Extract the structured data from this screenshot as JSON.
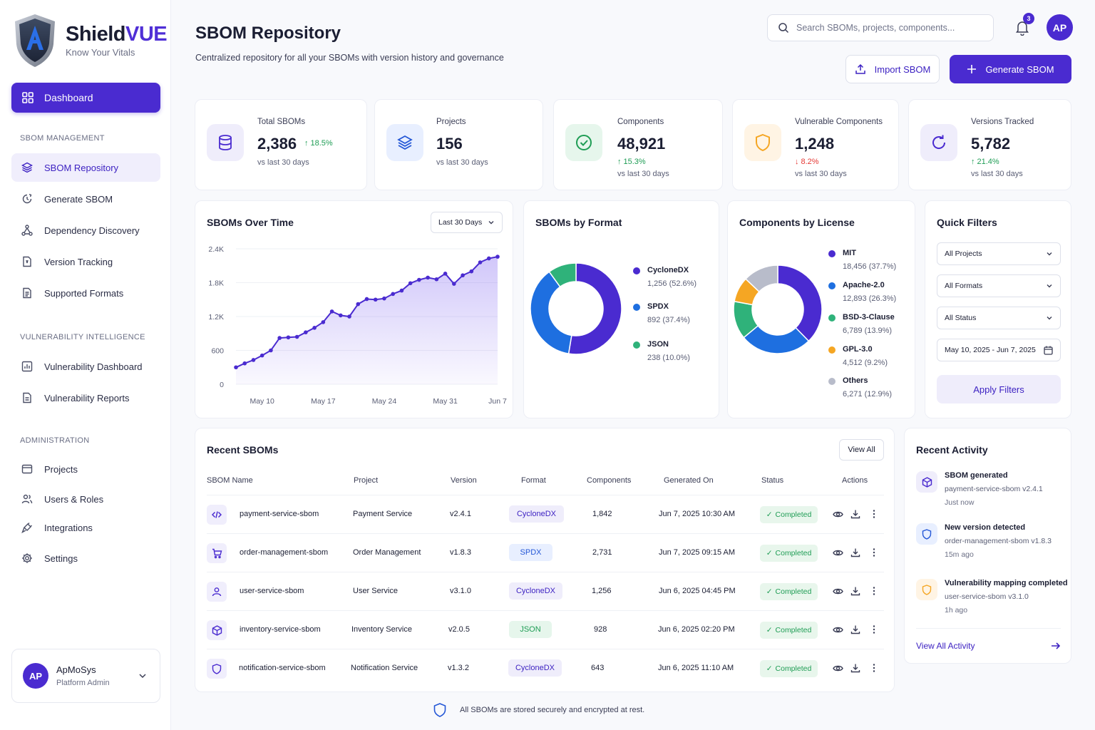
{
  "brand": {
    "name_part1": "Shield",
    "name_part2": "VUE",
    "tagline": "Know Your Vitals"
  },
  "sidebar": {
    "dashboard": "Dashboard",
    "sections": [
      {
        "label": "SBOM MANAGEMENT",
        "items": [
          {
            "label": "SBOM Repository",
            "icon": "layers-icon",
            "active": true
          },
          {
            "label": "Generate SBOM",
            "icon": "generate-icon"
          },
          {
            "label": "Dependency Discovery",
            "icon": "hierarchy-icon"
          },
          {
            "label": "Version Tracking",
            "icon": "version-icon"
          },
          {
            "label": "Supported Formats",
            "icon": "file-icon"
          }
        ]
      },
      {
        "label": "VULNERABILITY INTELLIGENCE",
        "items": [
          {
            "label": "Vulnerability Dashboard",
            "icon": "bar-chart-icon"
          },
          {
            "label": "Vulnerability Reports",
            "icon": "report-icon"
          }
        ]
      },
      {
        "label": "ADMINISTRATION",
        "items": [
          {
            "label": "Projects",
            "icon": "folder-icon"
          },
          {
            "label": "Users & Roles",
            "icon": "users-icon"
          },
          {
            "label": "Integrations",
            "icon": "plug-icon"
          },
          {
            "label": "Settings",
            "icon": "gear-icon"
          }
        ]
      }
    ],
    "user": {
      "initials": "AP",
      "name": "ApMoSys",
      "role": "Platform Admin"
    }
  },
  "header": {
    "title": "SBOM Repository",
    "subtitle": "Centralized repository for all your SBOMs with version history and governance",
    "search_placeholder": "Search SBOMs, projects, components...",
    "notification_count": "3",
    "avatar": "AP",
    "import_label": "Import SBOM",
    "generate_label": "Generate SBOM"
  },
  "stats": [
    {
      "label": "Total SBOMs",
      "value": "2,386",
      "delta": "18.5%",
      "trend": "up",
      "note": "vs last 30 days"
    },
    {
      "label": "Projects",
      "value": "156",
      "delta": "",
      "trend": "",
      "note": "vs last 30 days"
    },
    {
      "label": "Components",
      "value": "48,921",
      "delta": "15.3%",
      "trend": "up",
      "note": "vs last 30 days"
    },
    {
      "label": "Vulnerable Components",
      "value": "1,248",
      "delta": "8.2%",
      "trend": "down",
      "note": "vs last 30 days"
    },
    {
      "label": "Versions Tracked",
      "value": "5,782",
      "delta": "21.4%",
      "trend": "up",
      "note": "vs last 30 days"
    }
  ],
  "over_time": {
    "title": "SBOMs Over Time",
    "range": "Last 30 Days"
  },
  "by_format": {
    "title": "SBOMs by Format"
  },
  "by_license": {
    "title": "Components by License"
  },
  "chart_data": [
    {
      "type": "area",
      "title": "SBOMs Over Time",
      "x_ticks": [
        "May 10",
        "May 17",
        "May 24",
        "May 31",
        "Jun 7"
      ],
      "y_ticks": [
        "0",
        "600",
        "1.2K",
        "1.8K",
        "2.4K"
      ],
      "ylim": [
        0,
        2400
      ],
      "values": [
        300,
        370,
        430,
        510,
        600,
        820,
        830,
        840,
        920,
        1000,
        1100,
        1290,
        1220,
        1200,
        1420,
        1510,
        1500,
        1520,
        1600,
        1660,
        1790,
        1850,
        1890,
        1860,
        1960,
        1780,
        1930,
        2000,
        2160,
        2230,
        2260
      ]
    },
    {
      "type": "pie",
      "title": "SBOMs by Format",
      "series": [
        {
          "name": "CycloneDX",
          "label": "1,256 (52.6%)",
          "value": 52.6,
          "color": "#4a2bd0"
        },
        {
          "name": "SPDX",
          "label": "892 (37.4%)",
          "value": 37.4,
          "color": "#1e6fe0"
        },
        {
          "name": "JSON",
          "label": "238 (10.0%)",
          "value": 10.0,
          "color": "#2fb27a"
        }
      ]
    },
    {
      "type": "pie",
      "title": "Components by License",
      "series": [
        {
          "name": "MIT",
          "label": "18,456 (37.7%)",
          "value": 37.7,
          "color": "#4a2bd0"
        },
        {
          "name": "Apache-2.0",
          "label": "12,893 (26.3%)",
          "value": 26.3,
          "color": "#1e6fe0"
        },
        {
          "name": "BSD-3-Clause",
          "label": "6,789 (13.9%)",
          "value": 13.9,
          "color": "#2fb27a"
        },
        {
          "name": "GPL-3.0",
          "label": "4,512 (9.2%)",
          "value": 9.2,
          "color": "#f5a623"
        },
        {
          "name": "Others",
          "label": "6,271 (12.9%)",
          "value": 12.9,
          "color": "#b8bcca"
        }
      ]
    }
  ],
  "quick_filters": {
    "title": "Quick Filters",
    "projects": "All Projects",
    "formats": "All Formats",
    "status": "All Status",
    "date_range": "May 10, 2025 - Jun 7, 2025",
    "apply": "Apply Filters"
  },
  "recent": {
    "title": "Recent SBOMs",
    "view_all": "View All",
    "columns": [
      "SBOM Name",
      "Project",
      "Version",
      "Format",
      "Components",
      "Generated On",
      "Status",
      "Actions"
    ],
    "rows": [
      {
        "icon": "code-icon",
        "name": "payment-service-sbom",
        "project": "Payment Service",
        "version": "v2.4.1",
        "format": "CycloneDX",
        "components": "1,842",
        "generated": "Jun 7, 2025 10:30 AM",
        "status": "Completed"
      },
      {
        "icon": "cart-icon",
        "name": "order-management-sbom",
        "project": "Order Management",
        "version": "v1.8.3",
        "format": "SPDX",
        "components": "2,731",
        "generated": "Jun 7, 2025 09:15 AM",
        "status": "Completed"
      },
      {
        "icon": "user-icon",
        "name": "user-service-sbom",
        "project": "User Service",
        "version": "v3.1.0",
        "format": "CycloneDX",
        "components": "1,256",
        "generated": "Jun 6, 2025 04:45 PM",
        "status": "Completed"
      },
      {
        "icon": "box-icon",
        "name": "inventory-service-sbom",
        "project": "Inventory Service",
        "version": "v2.0.5",
        "format": "JSON",
        "components": "928",
        "generated": "Jun 6, 2025 02:20 PM",
        "status": "Completed"
      },
      {
        "icon": "shield-icon",
        "name": "notification-service-sbom",
        "project": "Notification Service",
        "version": "v1.3.2",
        "format": "CycloneDX",
        "components": "643",
        "generated": "Jun 6, 2025 11:10 AM",
        "status": "Completed"
      }
    ]
  },
  "activity": {
    "title": "Recent Activity",
    "items": [
      {
        "icon": "box-icon",
        "title": "SBOM generated",
        "detail": "payment-service-sbom v2.4.1",
        "time": "Just now"
      },
      {
        "icon": "shield-icon",
        "title": "New version detected",
        "detail": "order-management-sbom v1.8.3",
        "time": "15m ago"
      },
      {
        "icon": "shield-warning-icon",
        "title": "Vulnerability mapping completed",
        "detail": "user-service-sbom v3.1.0",
        "time": "1h ago"
      }
    ],
    "view_all": "View All Activity"
  },
  "footer": "All SBOMs are stored securely and encrypted at rest."
}
